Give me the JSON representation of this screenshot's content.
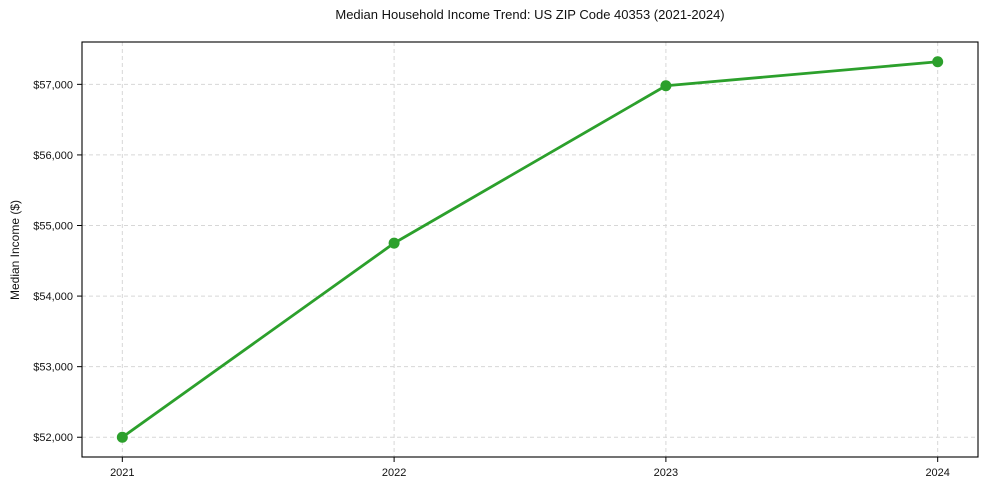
{
  "figure": {
    "background": "#ffffff",
    "text_color": "#111111",
    "frame_color": "#000000"
  },
  "chart_data": {
    "type": "line",
    "title": "Median Household Income Trend: US ZIP Code 40353 (2021-2024)",
    "xlabel": "",
    "ylabel": "Median Income ($)",
    "categories": [
      "2021",
      "2022",
      "2023",
      "2024"
    ],
    "series": [
      {
        "name": "Median Household Income",
        "values": [
          52000,
          54750,
          56980,
          57320
        ],
        "color": "#2ca02c",
        "marker": "circle",
        "line_width": 2.8,
        "marker_radius": 5.5
      }
    ],
    "ylim": [
      51720,
      57600
    ],
    "yticks": [
      52000,
      53000,
      54000,
      55000,
      56000,
      57000
    ],
    "ytick_prefix": "$",
    "grid": true,
    "grid_style": "dashed",
    "grid_color": "#d7d7d7",
    "legend_position": "none"
  }
}
